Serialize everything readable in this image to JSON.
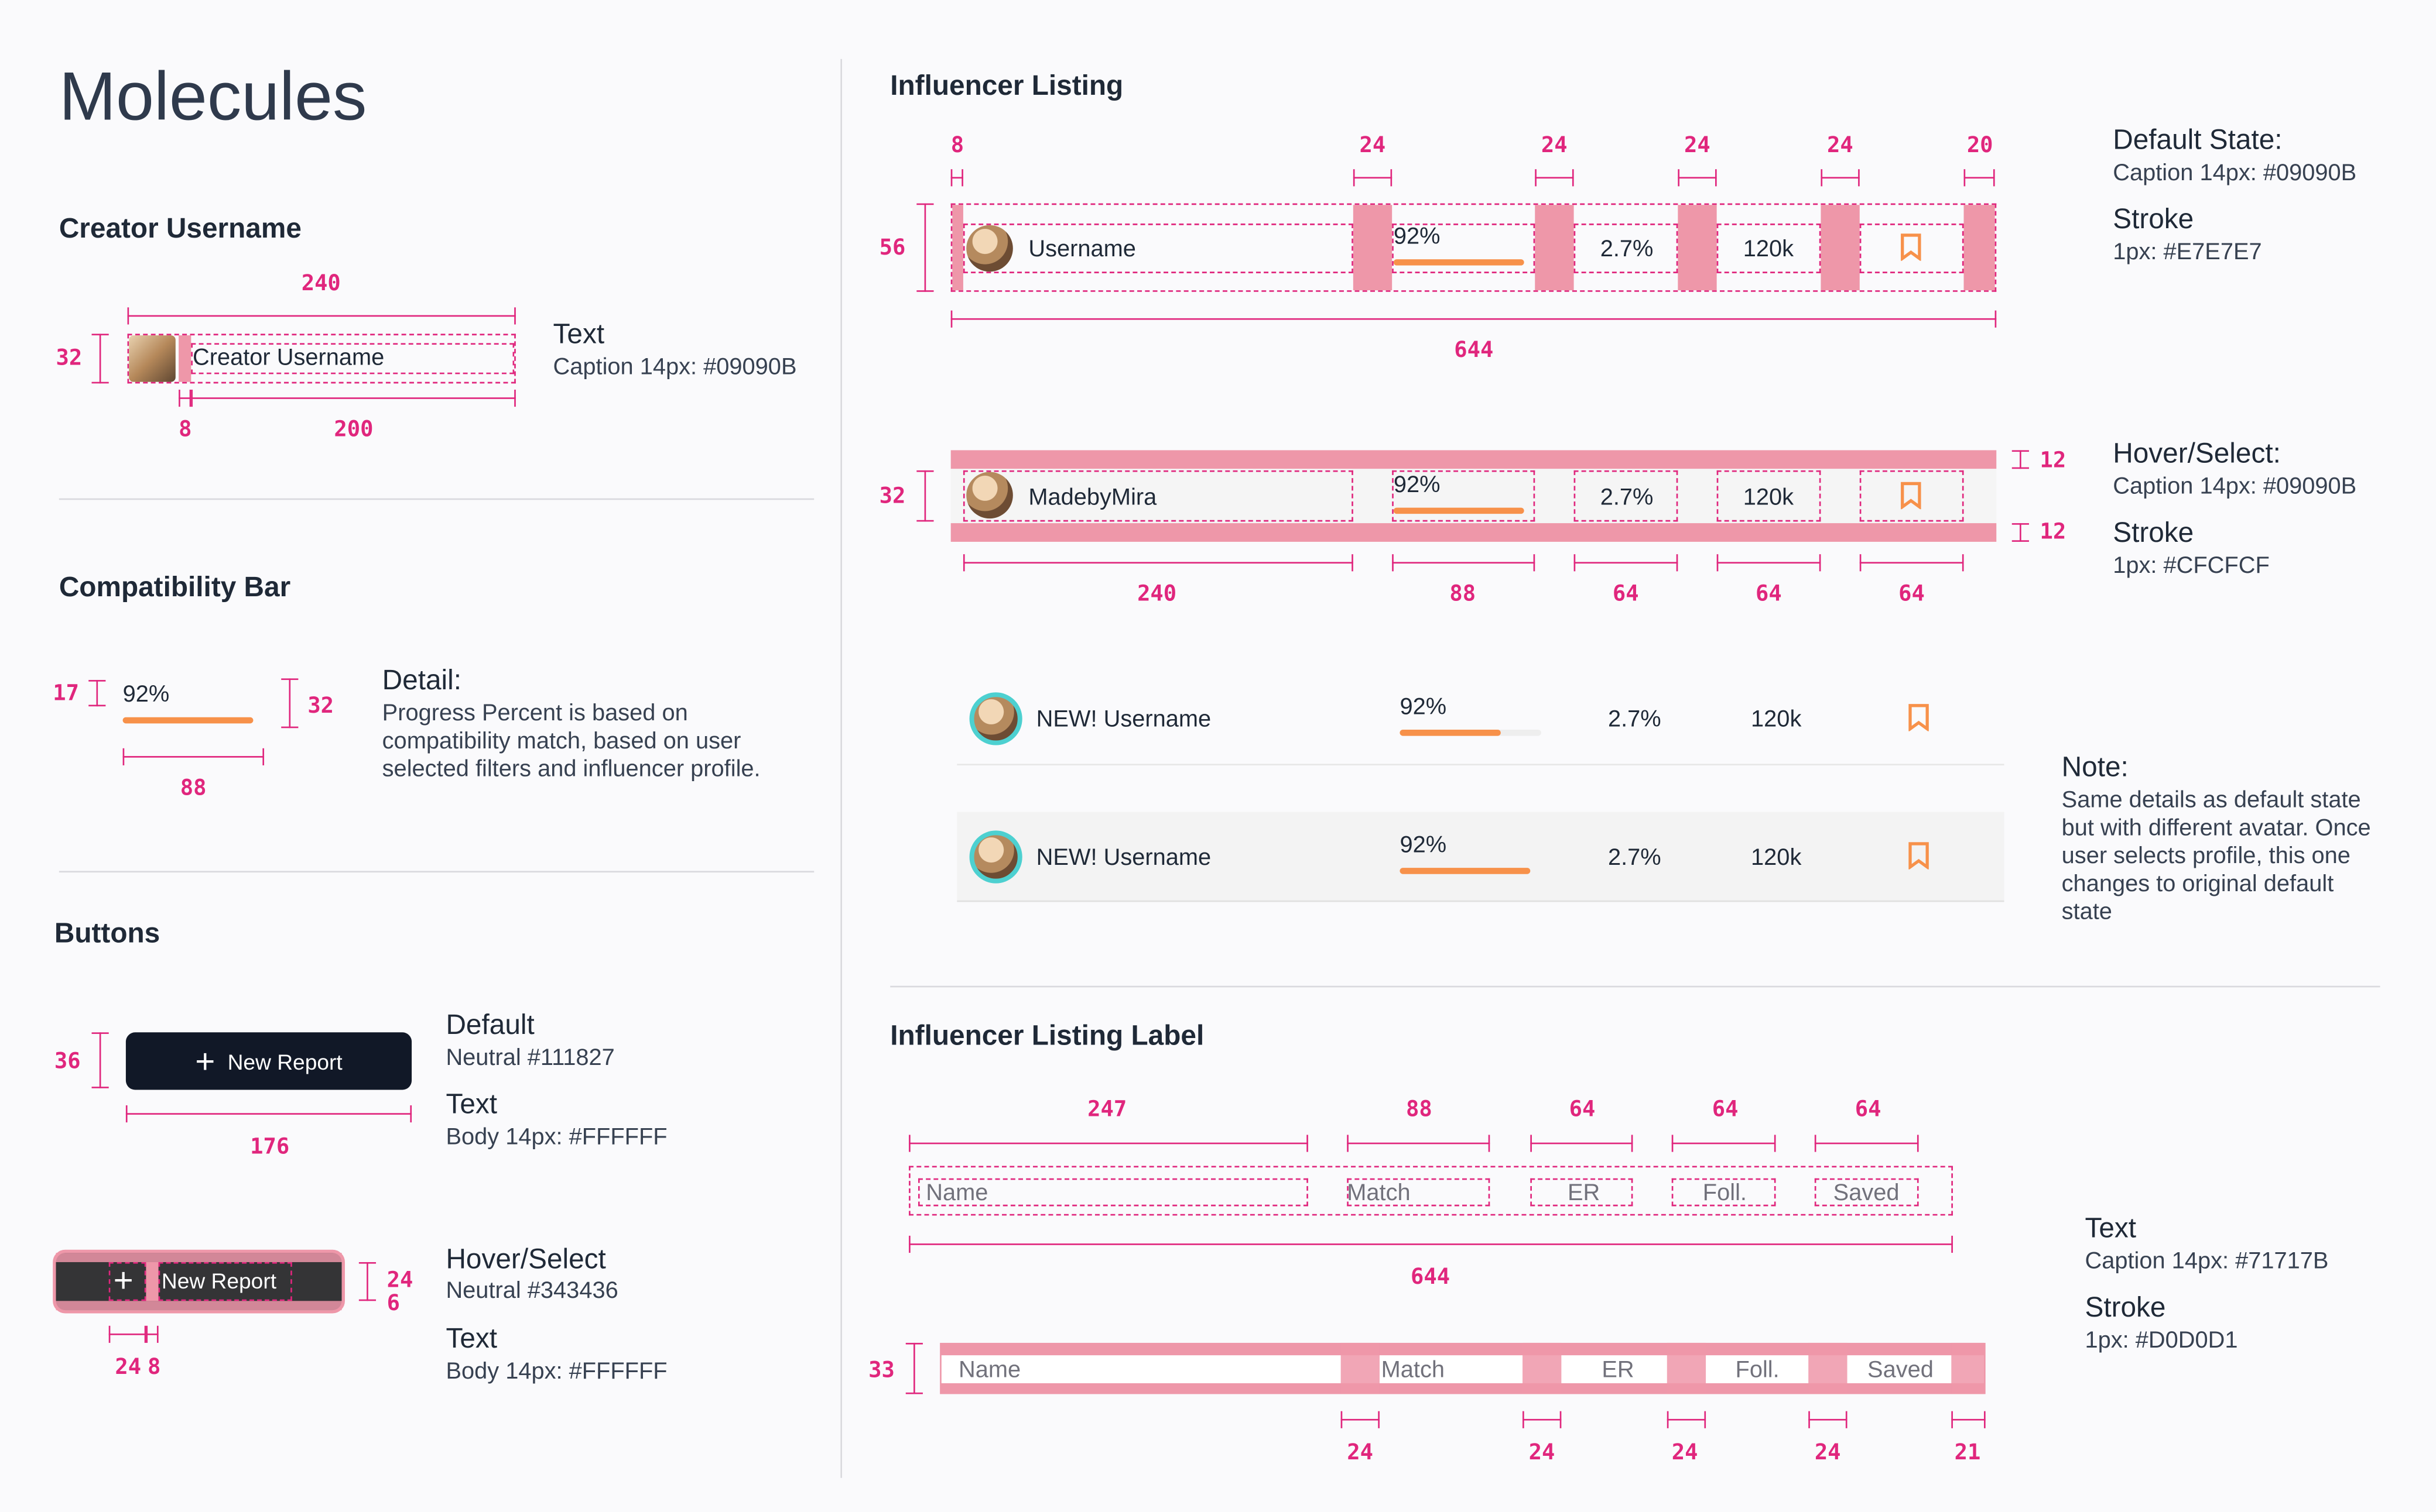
{
  "page_title": "Molecules",
  "colors": {
    "accent": "#E0267D",
    "orange": "#F7914A",
    "teal": "#4DD0D0",
    "neutral": "#111827",
    "neutral_hover": "#343436"
  },
  "creator_username": {
    "title": "Creator Username",
    "name": "Creator Username",
    "dims": {
      "width": "240",
      "height": "32",
      "gap": "8",
      "text_width": "200"
    },
    "note_title": "Text",
    "note_detail": "Caption 14px: #09090B"
  },
  "compat_bar": {
    "title": "Compatibility Bar",
    "percent": "92%",
    "progress": 0.92,
    "dims": {
      "text": "17",
      "height": "32",
      "width": "88"
    },
    "detail_title": "Detail:",
    "detail_text": "Progress Percent is based on compatibility match, based on user selected filters and influencer profile."
  },
  "buttons": {
    "title": "Buttons",
    "label": "New Report",
    "dims": {
      "height": "36",
      "width": "176",
      "icon_h": "24",
      "gap_v": "6",
      "icon_w": "24",
      "gap_h": "8"
    },
    "default_title": "Default",
    "default_color": "Neutral #111827",
    "hover_title": "Hover/Select",
    "hover_color": "Neutral #343436",
    "text_title": "Text",
    "text_detail": "Body 14px: #FFFFFF"
  },
  "listing": {
    "title": "Influencer Listing",
    "default_dims": {
      "d1": "8",
      "d2": "24",
      "d3": "24",
      "d4": "24",
      "d5": "24",
      "d6": "20",
      "height": "56",
      "total": "644"
    },
    "hover_dims": {
      "top": "12",
      "bottom": "12",
      "height": "32",
      "c1": "240",
      "c2": "88",
      "c3": "64",
      "c4": "64",
      "c5": "64"
    },
    "row1": {
      "name": "Username",
      "match": "92%",
      "er": "2.7%",
      "foll": "120k"
    },
    "row2": {
      "name": "MadebyMira",
      "match": "92%",
      "er": "2.7%",
      "foll": "120k"
    },
    "row3": {
      "name": "NEW! Username",
      "match": "92%",
      "er": "2.7%",
      "foll": "120k"
    },
    "row4": {
      "name": "NEW! Username",
      "match": "92%",
      "er": "2.7%",
      "foll": "120k"
    },
    "default_state_title": "Default State:",
    "default_caption": "Caption 14px: #09090B",
    "stroke_title": "Stroke",
    "default_stroke": "1px: #E7E7E7",
    "hover_title": "Hover/Select:",
    "hover_caption": "Caption 14px: #09090B",
    "hover_stroke": "1px: #CFCFCF",
    "note_title": "Note:",
    "note_text": "Same details as default state but with different avatar. Once user selects profile, this one changes to original default state"
  },
  "listing_label": {
    "title": "Influencer Listing Label",
    "labels": [
      "Name",
      "Match",
      "ER",
      "Foll.",
      "Saved"
    ],
    "col_dims": [
      "247",
      "88",
      "64",
      "64",
      "64"
    ],
    "total": "644",
    "height": "33",
    "gap_dims": [
      "24",
      "24",
      "24",
      "24",
      "21"
    ],
    "text_title": "Text",
    "text_detail": "Caption 14px: #71717B",
    "stroke_title": "Stroke",
    "stroke_detail": "1px: #D0D0D1"
  }
}
